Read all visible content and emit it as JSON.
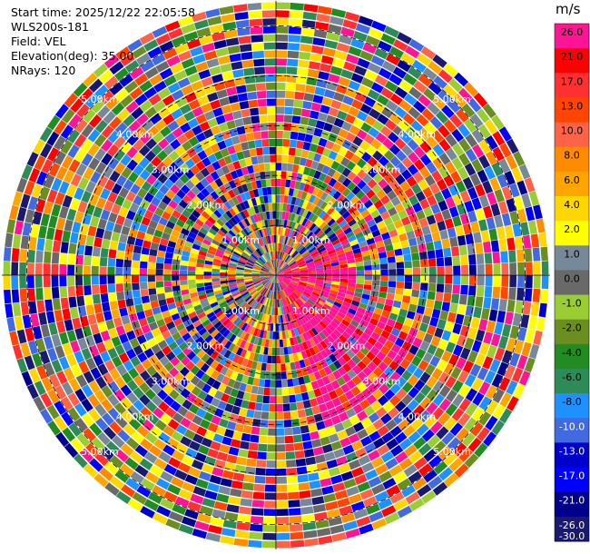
{
  "info": {
    "start_time": "Start time: 2025/12/22 22:05:58",
    "device": "WLS200s-181",
    "field": "Field: VEL",
    "elevation": "Elevation(deg): 35.00",
    "nrays": "NRays: 120"
  },
  "chart_data": {
    "type": "heatmap",
    "subtype": "polar-ppi",
    "field": "VEL",
    "unit": "m/s",
    "nrays": 120,
    "elevation_deg": 35.0,
    "max_range_km": 5.5,
    "range_rings_km": [
      1.0,
      2.0,
      3.0,
      4.0,
      5.0
    ],
    "ring_labels": [
      "1.00km",
      "2.00km",
      "3.00km",
      "4.00km",
      "5.00km"
    ],
    "colorbar": {
      "ticks": [
        "26.0",
        "21.0",
        "17.0",
        "13.0",
        "10.0",
        "8.0",
        "6.0",
        "4.0",
        "2.0",
        "1.0",
        "0.0",
        "-1.0",
        "-2.0",
        "-4.0",
        "-6.0",
        "-8.0",
        "-10.0",
        "-13.0",
        "-17.0",
        "-21.0",
        "-26.0",
        "-30.0"
      ],
      "colors": [
        "#ff1493",
        "#ff0000",
        "#ff3030",
        "#ff4500",
        "#ff6347",
        "#ff8c00",
        "#ffa500",
        "#ffd700",
        "#ffff00",
        "#778899",
        "#696969",
        "#9acd32",
        "#6b8e23",
        "#228b22",
        "#2e8b57",
        "#1e90ff",
        "#4169e1",
        "#0000cd",
        "#0000ff",
        "#00008b",
        "#191970"
      ]
    },
    "notable_region": "coherent positive-velocity (pink/red) sector to the right and lower-right of the center, near range extending beyond 3 km"
  }
}
